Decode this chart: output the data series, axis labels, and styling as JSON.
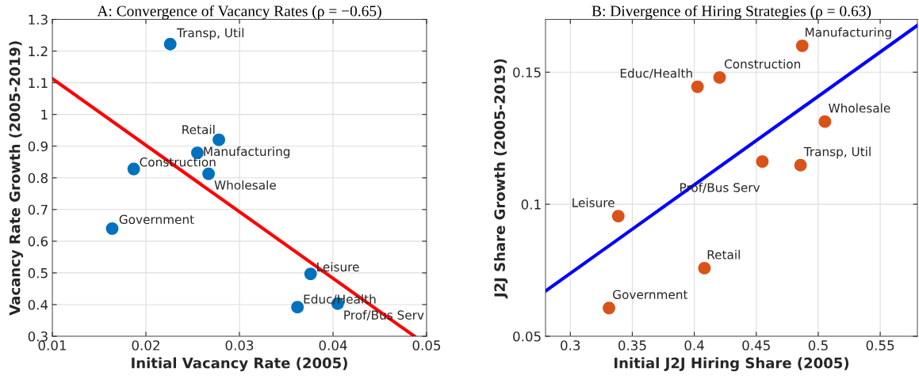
{
  "chart_data": [
    {
      "type": "scatter",
      "title": "A: Convergence of Vacancy Rates (ρ = −0.65)",
      "xlabel": "Initial Vacancy Rate (2005)",
      "ylabel": "Vacancy Rate Growth (2005-2019)",
      "series": [
        {
          "marker": "circle",
          "color": "#0072bd",
          "x": [
            0.0226,
            0.0278,
            0.0255,
            0.0187,
            0.0267,
            0.0164,
            0.0376,
            0.0362,
            0.0405
          ],
          "values": [
            1.222,
            0.92,
            0.879,
            0.828,
            0.813,
            0.64,
            0.497,
            0.392,
            0.403
          ],
          "value_labels": [
            "Transp, Util",
            "Retail",
            "Manufacturing",
            "Construction",
            "Wholesale",
            "Government",
            "Leisure",
            "Educ/Health",
            "Prof/Bus Serv"
          ]
        },
        {
          "type": "line",
          "color": "#ff0000",
          "x": [
            0.01,
            0.0487
          ],
          "values": [
            1.113,
            0.3
          ]
        }
      ],
      "grid": true,
      "legend": false,
      "xlim": [
        0.01,
        0.05
      ],
      "xticks": [
        0.01,
        0.02,
        0.03,
        0.04,
        0.05
      ],
      "ylim": [
        0.3,
        1.3
      ],
      "yticks": [
        0.3,
        0.4,
        0.5,
        0.6,
        0.7,
        0.8,
        0.9,
        1,
        1.1,
        1.2,
        1.3
      ]
    },
    {
      "type": "scatter",
      "title": "B: Divergence of Hiring Strategies (ρ = 0.63)",
      "xlabel": "Initial J2J Hiring Share (2005)",
      "ylabel": "J2J Share Growth (2005-2019)",
      "series": [
        {
          "marker": "circle",
          "color": "#d95319",
          "x": [
            0.4871,
            0.4204,
            0.4026,
            0.5054,
            0.4857,
            0.4549,
            0.3387,
            0.4082,
            0.3312
          ],
          "values": [
            0.16,
            0.148,
            0.1445,
            0.1313,
            0.1148,
            0.1162,
            0.0955,
            0.0758,
            0.0607
          ],
          "value_labels": [
            "Manufacturing",
            "Construction",
            "Educ/Health",
            "Wholesale",
            "Transp, Util",
            "Prof/Bus Serv",
            "Leisure",
            "Retail",
            "Government"
          ]
        },
        {
          "type": "line",
          "color": "#0000ff",
          "x": [
            0.28,
            0.58
          ],
          "values": [
            0.0671,
            0.1677
          ]
        }
      ],
      "grid": true,
      "legend": false,
      "xlim": [
        0.28,
        0.58
      ],
      "xticks": [
        0.3,
        0.35,
        0.4,
        0.45,
        0.5,
        0.55
      ],
      "ylim": [
        0.05,
        0.17
      ],
      "yticks": [
        0.05,
        0.1,
        0.15
      ]
    }
  ]
}
